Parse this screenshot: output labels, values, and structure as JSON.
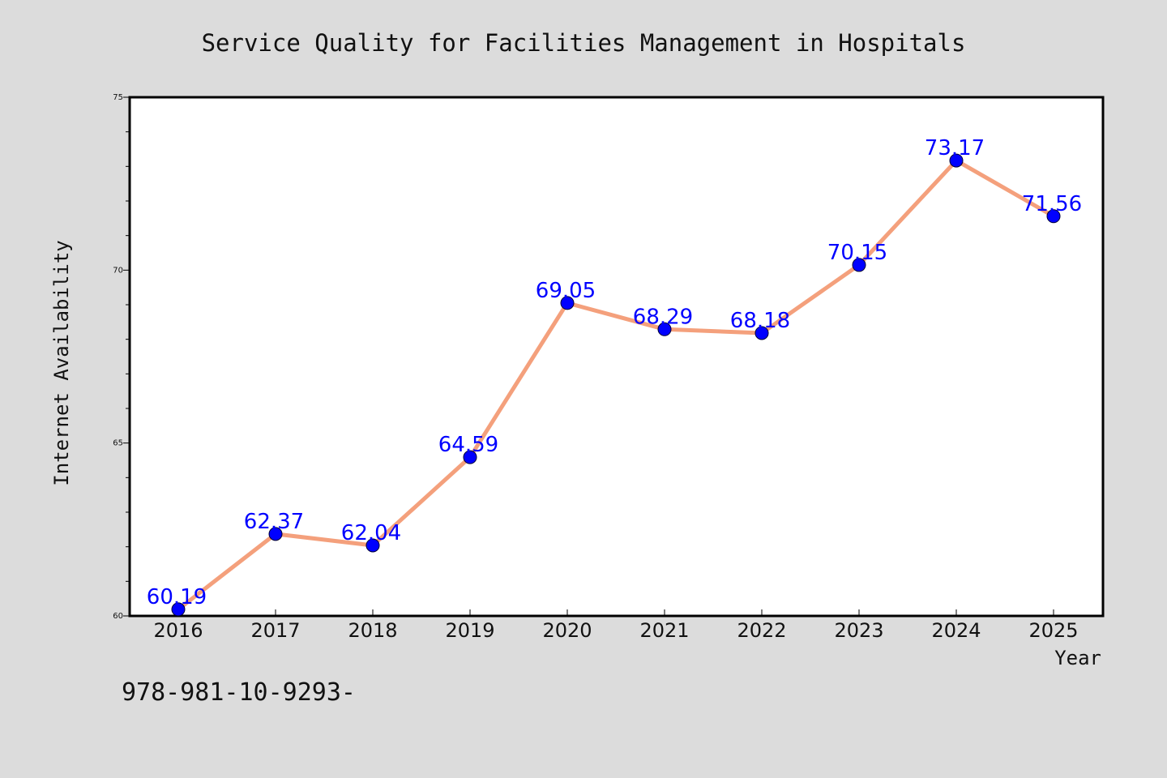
{
  "chart_data": {
    "type": "line",
    "title": "Service Quality for Facilities Management in Hospitals",
    "xlabel": "Year",
    "ylabel": "Internet Availability",
    "categories": [
      "2016",
      "2017",
      "2018",
      "2019",
      "2020",
      "2021",
      "2022",
      "2023",
      "2024",
      "2025"
    ],
    "values": [
      60.19,
      62.37,
      62.04,
      64.59,
      69.05,
      68.29,
      68.18,
      70.15,
      73.17,
      71.56
    ],
    "data_labels": [
      "60.19",
      "62.37",
      "62.04",
      "64.59",
      "69.05",
      "68.29",
      "68.18",
      "70.15",
      "73.17",
      "71.56"
    ],
    "ylim": [
      60,
      75
    ],
    "yticks": [
      "60",
      "65",
      "70",
      "75"
    ],
    "grid": false,
    "legend": "none",
    "colors": {
      "line": "#f4a07c",
      "marker": "#0000ff",
      "label": "#0000ff",
      "background": "#dcdcdc",
      "plot_background": "#ffffff"
    }
  },
  "footer": {
    "text": "978-981-10-9293-"
  }
}
